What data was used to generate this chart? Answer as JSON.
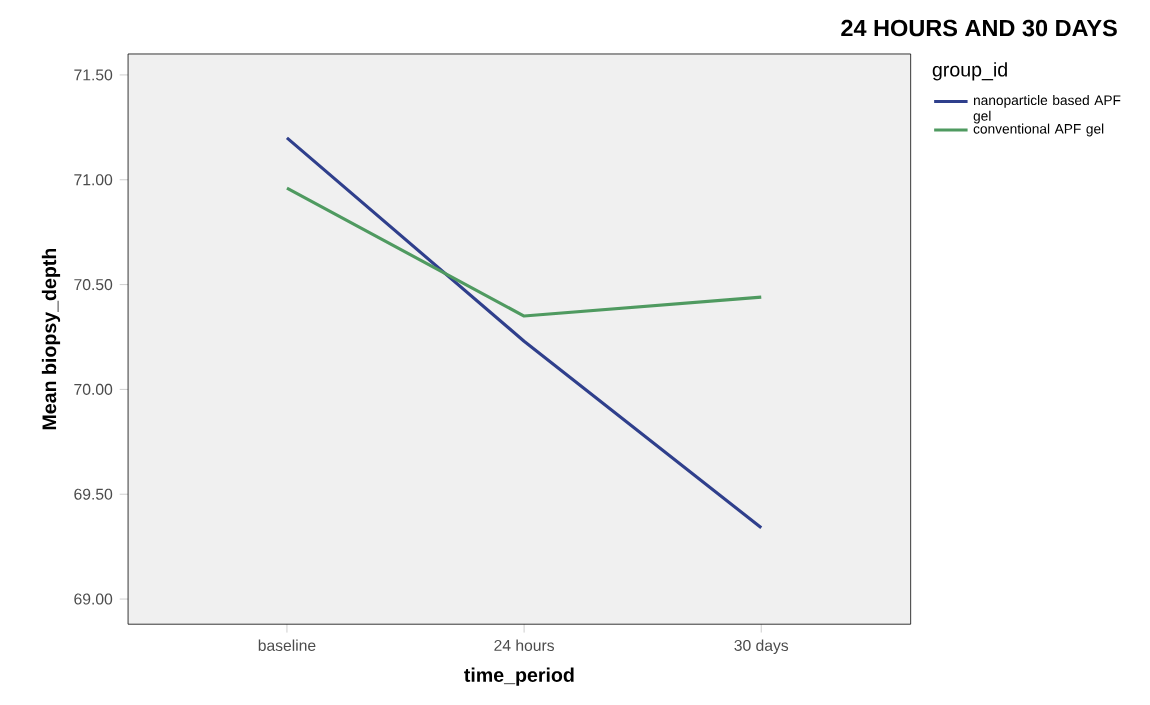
{
  "chart_data": {
    "type": "line",
    "title": "24 HOURS AND 30 DAYS",
    "xlabel": "time_period",
    "ylabel": "Mean biopsy_depth",
    "legend_title": "group_id",
    "categories": [
      "baseline",
      "24 hours",
      "30 days"
    ],
    "series": [
      {
        "name": "nanoparticle based APF gel",
        "color": "#2f3f8c",
        "values": [
          71.2,
          70.23,
          69.34
        ]
      },
      {
        "name": "conventional APF gel",
        "color": "#4f9a60",
        "values": [
          70.96,
          70.35,
          70.44
        ]
      }
    ],
    "ylim": [
      68.88,
      71.6
    ],
    "yticks": [
      {
        "value": 69,
        "label": "69.00"
      },
      {
        "value": 69.5,
        "label": "69.50"
      },
      {
        "value": 70,
        "label": "70.00"
      },
      {
        "value": 70.5,
        "label": "70.50"
      },
      {
        "value": 71,
        "label": "71.00"
      },
      {
        "value": 71.5,
        "label": "71.50"
      }
    ],
    "grid": false,
    "legend": "right",
    "marker": "none",
    "line_style": "solid"
  }
}
